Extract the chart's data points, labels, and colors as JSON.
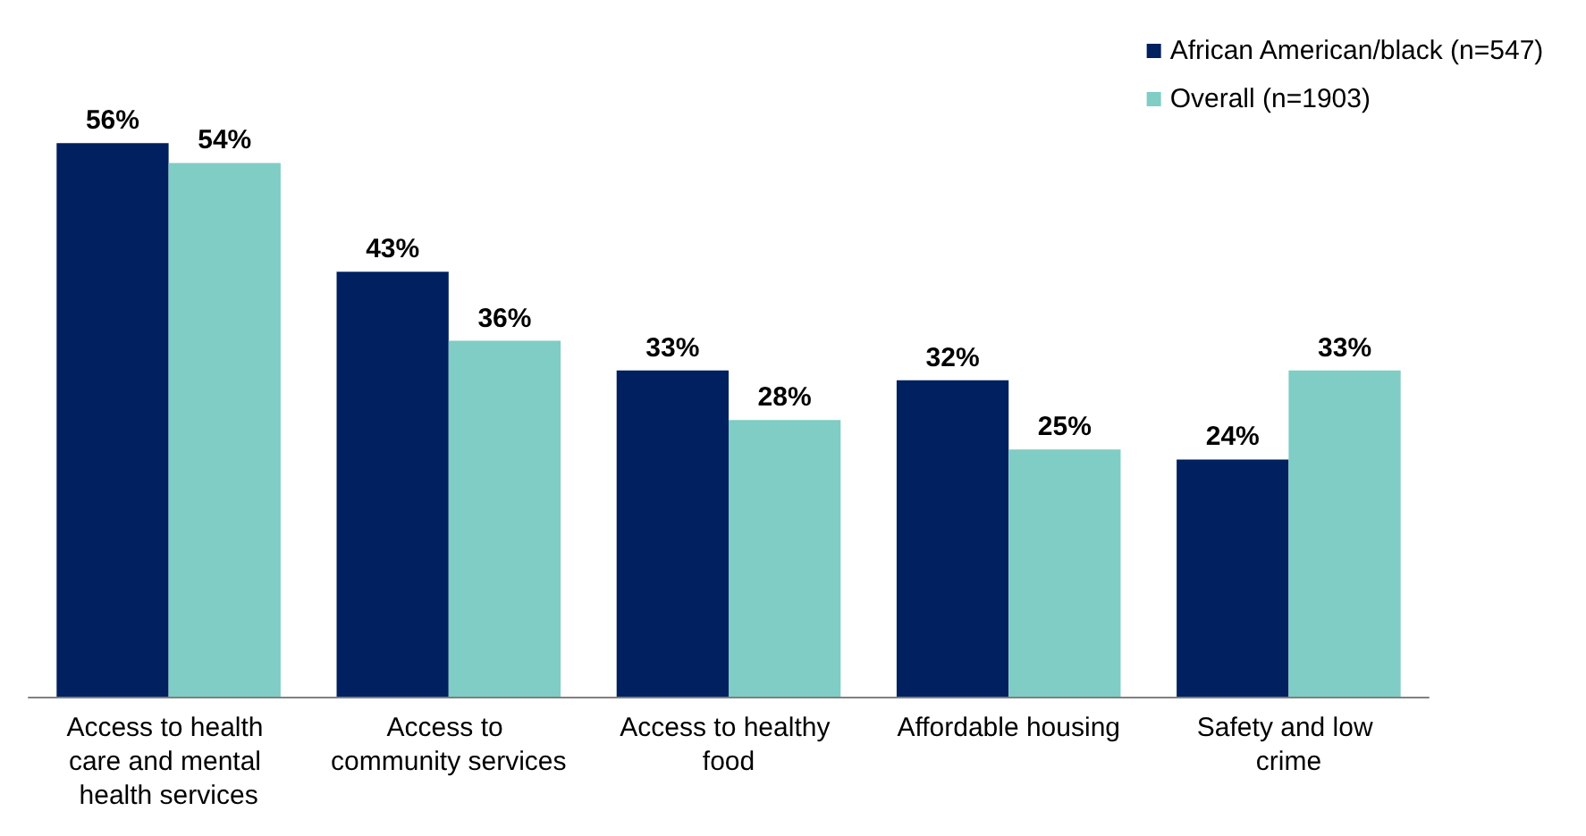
{
  "chart_data": {
    "type": "bar",
    "categories": [
      "Access to health care and mental health services",
      "Access to community services",
      "Access to healthy food",
      "Affordable housing",
      "Safety and low crime"
    ],
    "series": [
      {
        "name": "African American/black (n=547)",
        "color": "#002060",
        "values": [
          56,
          43,
          33,
          32,
          24
        ],
        "value_labels": [
          "56%",
          "43%",
          "33%",
          "32%",
          "24%"
        ]
      },
      {
        "name": "Overall (n=1903)",
        "color": "#7fcdc4",
        "values": [
          54,
          36,
          28,
          25,
          33
        ],
        "value_labels": [
          "54%",
          "36%",
          "28%",
          "25%",
          "33%"
        ]
      }
    ],
    "legend": "top right"
  }
}
